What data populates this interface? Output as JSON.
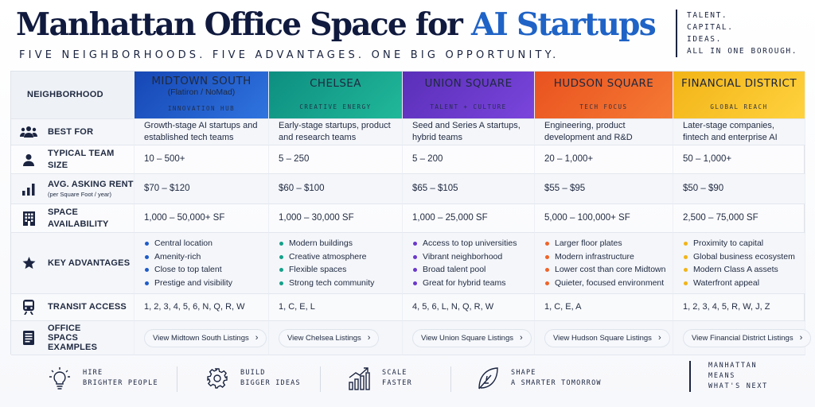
{
  "header": {
    "title_main": "Manhattan Office Space for ",
    "title_highlight": "AI Startups",
    "subtitle": "FIVE NEIGHBORHOODS. FIVE ADVANTAGES. ONE BIG OPPORTUNITY.",
    "tagline": [
      "TALENT.",
      "CAPITAL.",
      "IDEAS.",
      "ALL IN ONE BOROUGH."
    ]
  },
  "table": {
    "corner_label": "NEIGHBORHOOD",
    "columns": [
      {
        "name": "MIDTOWN SOUTH",
        "sub": "(Flatiron / NoMad)",
        "tag": "INNOVATION HUB",
        "color": "#1f5bc9"
      },
      {
        "name": "CHELSEA",
        "sub": "",
        "tag": "CREATIVE ENERGY",
        "color": "#14a08a"
      },
      {
        "name": "UNION SQUARE",
        "sub": "",
        "tag": "TALENT + CULTURE",
        "color": "#6a38c9"
      },
      {
        "name": "HUDSON SQUARE",
        "sub": "",
        "tag": "TECH FOCUS",
        "color": "#ef6428"
      },
      {
        "name": "FINANCIAL DISTRICT",
        "sub": "",
        "tag": "GLOBAL REACH",
        "color": "#f8c52a"
      }
    ],
    "rows": {
      "best_for": {
        "label": "BEST FOR",
        "icon": "group-icon",
        "values": [
          "Growth-stage AI startups and established tech teams",
          "Early-stage startups, product and research teams",
          "Seed and Series A startups, hybrid teams",
          "Engineering, product development and R&D",
          "Later-stage companies, fintech and enterprise AI"
        ]
      },
      "team_size": {
        "label": "TYPICAL TEAM SIZE",
        "icon": "person-icon",
        "values": [
          "10 – 500+",
          "5 – 250",
          "5 – 200",
          "20 – 1,000+",
          "50 – 1,000+"
        ]
      },
      "rent": {
        "label": "AVG. ASKING RENT",
        "label_small": "(per Square Foot / year)",
        "icon": "bar-chart-icon",
        "values": [
          "$70 – $120",
          "$60 – $100",
          "$65 – $105",
          "$55 – $95",
          "$50 – $90"
        ]
      },
      "availability": {
        "label": "SPACE AVAILABILITY",
        "icon": "building-icon",
        "values": [
          "1,000 – 50,000+ SF",
          "1,000 – 30,000 SF",
          "1,000 – 25,000 SF",
          "5,000 – 100,000+ SF",
          "2,500 – 75,000 SF"
        ]
      },
      "advantages": {
        "label": "KEY ADVANTAGES",
        "icon": "star-icon",
        "values": [
          [
            "Central location",
            "Amenity-rich",
            "Close to top talent",
            "Prestige and visibility"
          ],
          [
            "Modern buildings",
            "Creative atmosphere",
            "Flexible spaces",
            "Strong tech community"
          ],
          [
            "Access to top universities",
            "Vibrant neighborhood",
            "Broad talent pool",
            "Great for hybrid teams"
          ],
          [
            "Larger floor plates",
            "Modern infrastructure",
            "Lower cost than core Midtown",
            "Quieter, focused environment"
          ],
          [
            "Proximity to capital",
            "Global business ecosystem",
            "Modern Class A assets",
            "Waterfront appeal"
          ]
        ]
      },
      "transit": {
        "label": "TRANSIT ACCESS",
        "icon": "train-icon",
        "values": [
          "1, 2, 3, 4, 5, 6, N, Q, R, W",
          "1, C, E, L",
          "4, 5, 6, L, N, Q, R, W",
          "1, C, E, A",
          "1, 2, 3, 4, 5, R, W, J, Z"
        ]
      },
      "examples": {
        "label": "OFFICE SPACS EXAMPLES",
        "icon": "document-icon",
        "values": [
          "View Midtown South Listings",
          "View Chelsea Listings",
          "View Union Square Listings",
          "View Hudson Square Listings",
          "View Financial District Listings"
        ]
      }
    }
  },
  "footer": {
    "items": [
      {
        "lines": [
          "HIRE",
          "BRIGHTER PEOPLE"
        ],
        "icon": "lightbulb-icon"
      },
      {
        "lines": [
          "BUILD",
          "BIGGER IDEAS"
        ],
        "icon": "gear-icon"
      },
      {
        "lines": [
          "SCALE",
          "FASTER"
        ],
        "icon": "growth-chart-icon"
      },
      {
        "lines": [
          "SHAPE",
          "A SMARTER TOMORROW"
        ],
        "icon": "leaf-icon"
      }
    ],
    "closing": [
      "MANHATTAN",
      "MEANS",
      "WHAT'S NEXT"
    ]
  }
}
